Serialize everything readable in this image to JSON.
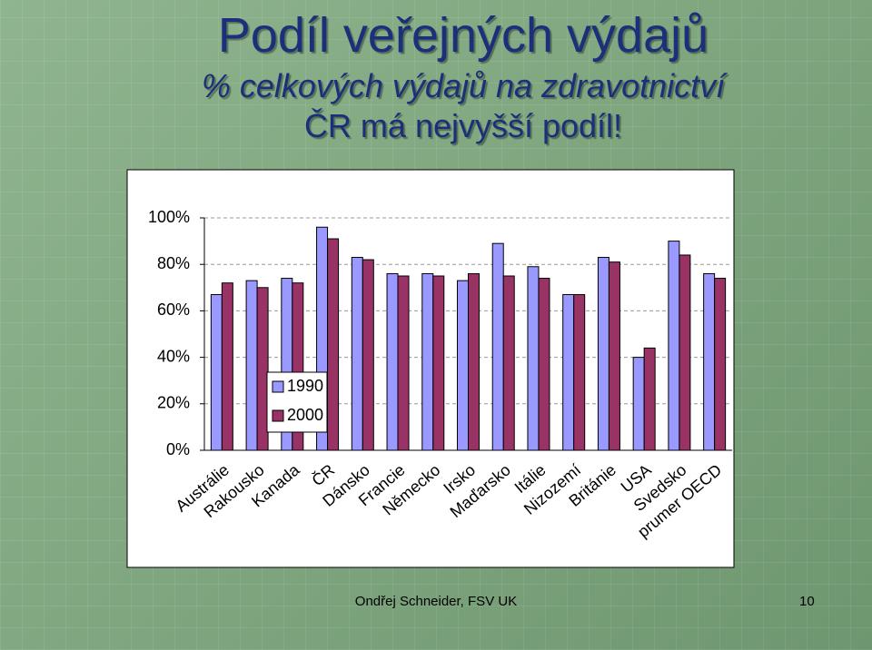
{
  "slide": {
    "title": "Podíl veřejných výdajů",
    "subtitle": "% celkových výdajů na zdravotnictví",
    "highlight": "ČR má nejvyšší podíl!",
    "footer": "Ondřej Schneider, FSV UK",
    "page_number": "10"
  },
  "chart_data": {
    "type": "bar",
    "categories": [
      "Austrálie",
      "Rakousko",
      "Kanada",
      "ČR",
      "Dánsko",
      "Francie",
      "Německo",
      "Irsko",
      "Maďarsko",
      "Itálie",
      "Nizozemí",
      "Británie",
      "USA",
      "Svedsko",
      "prumer OECD"
    ],
    "series": [
      {
        "name": "1990",
        "color": "#9999ff",
        "values": [
          67,
          73,
          74,
          96,
          83,
          76,
          76,
          73,
          89,
          79,
          67,
          83,
          40,
          90,
          76
        ]
      },
      {
        "name": "2000",
        "color": "#993366",
        "values": [
          72,
          70,
          72,
          91,
          82,
          75,
          75,
          76,
          75,
          74,
          67,
          81,
          44,
          84,
          74
        ]
      }
    ],
    "ylim": [
      0,
      100
    ],
    "yticks": [
      {
        "value": 0,
        "label": "0%"
      },
      {
        "value": 20,
        "label": "20%"
      },
      {
        "value": 40,
        "label": "40%"
      },
      {
        "value": 60,
        "label": "60%"
      },
      {
        "value": 80,
        "label": "80%"
      },
      {
        "value": 100,
        "label": "100%"
      }
    ],
    "grid": true,
    "legend": "inside-left"
  }
}
